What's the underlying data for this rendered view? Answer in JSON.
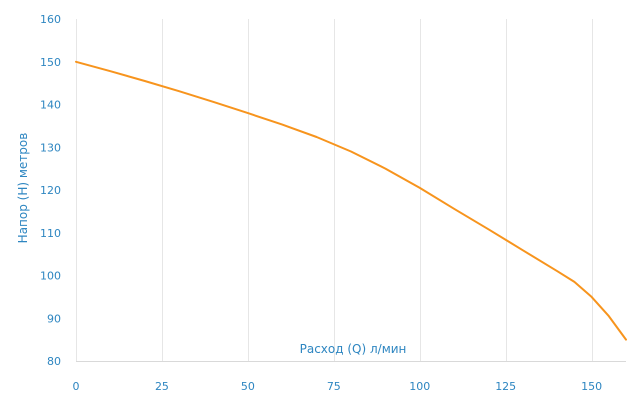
{
  "chart_data": {
    "type": "line",
    "title": "",
    "xlabel": "Расход (Q) л/мин",
    "ylabel": "Напор (H) метров",
    "xlim": [
      0,
      160
    ],
    "ylim": [
      80,
      160
    ],
    "x_ticks": [
      0,
      25,
      50,
      75,
      100,
      125,
      150
    ],
    "y_ticks": [
      80,
      90,
      100,
      110,
      120,
      130,
      140,
      150,
      160
    ],
    "x_tick_labels": [
      "0",
      "25",
      "50",
      "75",
      "100",
      "125",
      "150"
    ],
    "y_tick_labels": [
      "80",
      "90",
      "100",
      "110",
      "120",
      "130",
      "140",
      "150",
      "160"
    ],
    "grid": {
      "vertical": true,
      "horizontal": false
    },
    "colors": {
      "line": "#F7941D",
      "axis_text": "#2E86C1",
      "grid": "#E6E6E6",
      "axis_line": "#D9D9D9"
    },
    "series": [
      {
        "x": [
          0,
          10,
          20,
          30,
          40,
          50,
          60,
          70,
          80,
          90,
          100,
          110,
          120,
          130,
          140,
          145,
          150,
          155,
          160
        ],
        "y": [
          150,
          147.8,
          145.5,
          143.1,
          140.6,
          138.0,
          135.3,
          132.4,
          129.0,
          125.0,
          120.5,
          115.6,
          110.8,
          105.9,
          101.0,
          98.5,
          95.0,
          90.5,
          85.0
        ]
      }
    ]
  }
}
